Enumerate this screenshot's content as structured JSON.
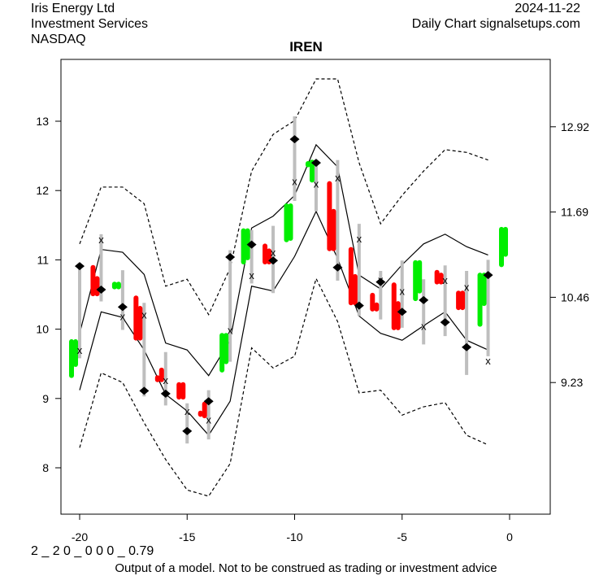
{
  "header": {
    "company": "Iris Energy Ltd",
    "sector": "Investment Services",
    "exchange": "NASDAQ",
    "date": "2024-11-22",
    "source": "Daily Chart signalsetups.com"
  },
  "footer": {
    "code": "2 _ 2 0 _ 0 0 0 _ 0.79",
    "disclaimer": "Output of a model. Not to be construed as trading or investment advice"
  },
  "colors": {
    "up": "#00ee00",
    "down": "#ff0000",
    "range": "#bebebe",
    "line": "#000000"
  },
  "chart_data": {
    "type": "candlestick-bands",
    "title": "IREN",
    "xlim": [
      -21,
      1.5
    ],
    "ylim": [
      7.35,
      13.9
    ],
    "x_ticks": [
      -20,
      -15,
      -10,
      -5,
      0
    ],
    "x_tick_labels": [
      "-20",
      "-15",
      "-10",
      "-5",
      "0"
    ],
    "y_ticks": [
      8,
      9,
      10,
      11,
      12,
      13
    ],
    "y_tick_labels": [
      "8",
      "9",
      "10",
      "11",
      "12",
      "13"
    ],
    "y2_ticks": [
      9.23,
      10.46,
      11.69,
      12.92
    ],
    "y2_tick_labels": [
      "9.23",
      "10.46",
      "11.69",
      "12.92"
    ],
    "days": [
      {
        "x": -20,
        "range": [
          9.58,
          10.93
        ],
        "diamond": 10.91,
        "mark": 9.7,
        "color": "up",
        "bars": [
          [
            9.33,
            9.82
          ],
          [
            9.49,
            9.82
          ]
        ]
      },
      {
        "x": -19,
        "range": [
          10.4,
          11.37
        ],
        "diamond": 10.57,
        "mark": 11.3,
        "color": "down",
        "bars": [
          [
            10.51,
            10.89
          ],
          [
            10.51,
            10.73
          ]
        ]
      },
      {
        "x": -18,
        "range": [
          9.99,
          10.85
        ],
        "diamond": 10.32,
        "mark": 10.19,
        "color": "up",
        "bars": [
          [
            10.61,
            10.65
          ],
          [
            10.61,
            10.65
          ]
        ]
      },
      {
        "x": -17,
        "range": [
          9.03,
          10.38
        ],
        "diamond": 9.11,
        "mark": 10.21,
        "color": "down",
        "bars": [
          [
            9.87,
            10.45
          ],
          [
            9.87,
            10.3
          ]
        ]
      },
      {
        "x": -16,
        "range": [
          8.9,
          9.67
        ],
        "diamond": 9.07,
        "mark": 9.27,
        "color": "down",
        "bars": [
          [
            9.27,
            9.3
          ],
          [
            9.27,
            9.41
          ]
        ]
      },
      {
        "x": -15,
        "range": [
          8.35,
          8.93
        ],
        "diamond": 8.53,
        "mark": 8.82,
        "color": "down",
        "bars": [
          [
            9.02,
            9.2
          ],
          [
            9.02,
            9.2
          ]
        ]
      },
      {
        "x": -14,
        "range": [
          8.41,
          9.12
        ],
        "diamond": 8.96,
        "mark": 8.7,
        "color": "down",
        "bars": [
          [
            8.77,
            8.79
          ],
          [
            8.75,
            8.92
          ]
        ]
      },
      {
        "x": -13,
        "range": [
          9.53,
          11.14
        ],
        "diamond": 11.04,
        "mark": 9.99,
        "color": "up",
        "bars": [
          [
            9.41,
            9.91
          ],
          [
            9.53,
            9.91
          ]
        ]
      },
      {
        "x": -12,
        "range": [
          10.66,
          11.43
        ],
        "diamond": 11.22,
        "mark": 10.78,
        "color": "up",
        "bars": [
          [
            10.97,
            11.42
          ],
          [
            11.03,
            11.42
          ]
        ]
      },
      {
        "x": -11,
        "range": [
          10.52,
          11.49
        ],
        "diamond": 10.99,
        "mark": 11.11,
        "color": "down",
        "bars": [
          [
            10.97,
            11.2
          ],
          [
            10.97,
            11.13
          ]
        ]
      },
      {
        "x": -10,
        "range": [
          11.85,
          13.07
        ],
        "diamond": 12.74,
        "mark": 12.14,
        "color": "up",
        "bars": [
          [
            11.29,
            11.78
          ],
          [
            11.31,
            11.78
          ]
        ]
      },
      {
        "x": -9,
        "range": [
          11.7,
          12.44
        ],
        "diamond": 12.4,
        "mark": 12.1,
        "color": "up",
        "bars": [
          [
            12.37,
            12.39
          ],
          [
            12.15,
            12.41
          ]
        ]
      },
      {
        "x": -8,
        "range": [
          10.7,
          12.44
        ],
        "diamond": 10.89,
        "mark": 12.19,
        "color": "down",
        "bars": [
          [
            11.16,
            12.1
          ],
          [
            11.16,
            11.7
          ]
        ]
      },
      {
        "x": -7,
        "range": [
          10.19,
          11.52
        ],
        "diamond": 10.34,
        "mark": 11.31,
        "color": "down",
        "bars": [
          [
            10.38,
            11.15
          ],
          [
            10.38,
            10.76
          ]
        ]
      },
      {
        "x": -6,
        "range": [
          10.14,
          10.84
        ],
        "diamond": 10.68,
        "mark": 10.72,
        "color": "down",
        "bars": [
          [
            10.29,
            10.49
          ],
          [
            10.29,
            10.35
          ]
        ]
      },
      {
        "x": -5,
        "range": [
          10.02,
          10.99
        ],
        "diamond": 10.25,
        "mark": 10.55,
        "color": "down",
        "bars": [
          [
            10.02,
            10.64
          ],
          [
            10.02,
            10.37
          ]
        ]
      },
      {
        "x": -4,
        "range": [
          9.78,
          10.72
        ],
        "diamond": 10.42,
        "mark": 10.05,
        "color": "up",
        "bars": [
          [
            10.44,
            10.96
          ],
          [
            10.55,
            10.96
          ]
        ]
      },
      {
        "x": -3,
        "range": [
          9.9,
          10.92
        ],
        "diamond": 10.1,
        "mark": 10.71,
        "color": "down",
        "bars": [
          [
            10.68,
            10.82
          ],
          [
            10.68,
            10.78
          ]
        ]
      },
      {
        "x": -2,
        "range": [
          9.34,
          10.84
        ],
        "diamond": 9.74,
        "mark": 10.61,
        "color": "down",
        "bars": [
          [
            10.31,
            10.52
          ],
          [
            10.31,
            10.52
          ]
        ]
      },
      {
        "x": -1,
        "range": [
          9.61,
          11.0
        ],
        "diamond": 10.78,
        "mark": 9.55,
        "color": "up",
        "bars": [
          [
            10.07,
            10.78
          ],
          [
            10.37,
            10.78
          ]
        ]
      },
      {
        "x": 0,
        "range": null,
        "diamond": null,
        "mark": null,
        "color": "up",
        "bars": [
          [
            10.93,
            11.44
          ],
          [
            11.08,
            11.44
          ]
        ]
      }
    ],
    "band_x": [
      -20,
      -19,
      -18,
      -17,
      -16,
      -15,
      -14,
      -13,
      -12,
      -11,
      -10,
      -9,
      -8,
      -7,
      -6,
      -5,
      -4,
      -3,
      -2,
      -1
    ],
    "series": [
      {
        "name": "upper",
        "style": "solid",
        "values": [
          9.94,
          11.15,
          11.11,
          10.79,
          9.8,
          9.7,
          9.33,
          9.84,
          11.46,
          11.63,
          11.93,
          12.66,
          12.34,
          10.78,
          10.58,
          10.93,
          11.23,
          11.37,
          11.19,
          11.07
        ]
      },
      {
        "name": "lower",
        "style": "solid",
        "values": [
          9.12,
          10.25,
          10.17,
          9.7,
          9.06,
          8.82,
          8.47,
          8.96,
          10.62,
          10.55,
          11.05,
          11.7,
          11.02,
          10.19,
          9.94,
          9.84,
          10.05,
          10.25,
          9.84,
          9.7
        ]
      },
      {
        "name": "outer-upper",
        "style": "dashed",
        "values": [
          11.23,
          12.05,
          12.05,
          11.81,
          10.62,
          10.72,
          10.21,
          10.88,
          12.28,
          12.81,
          13.01,
          13.61,
          13.61,
          12.4,
          11.52,
          11.93,
          12.28,
          12.59,
          12.55,
          12.44
        ]
      },
      {
        "name": "outer-lower",
        "style": "dashed",
        "values": [
          8.29,
          9.37,
          9.23,
          8.65,
          8.12,
          7.68,
          7.59,
          8.06,
          9.73,
          9.44,
          9.61,
          10.73,
          10.11,
          9.08,
          9.12,
          8.76,
          8.88,
          8.94,
          8.47,
          8.33
        ]
      }
    ]
  }
}
